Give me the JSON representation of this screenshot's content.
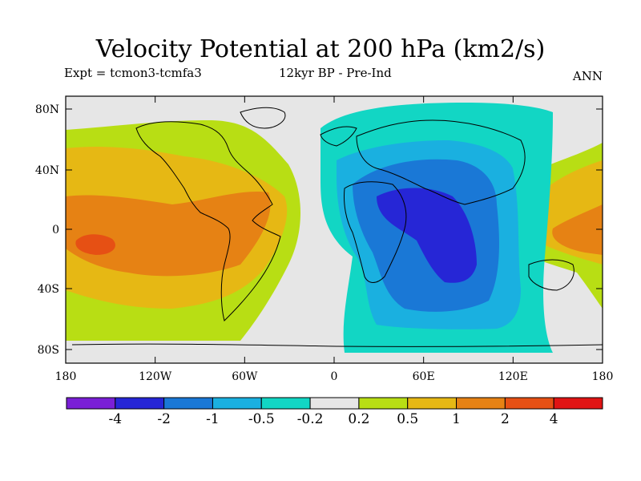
{
  "title": "Velocity Potential at 200 hPa (km2/s)",
  "subtitle_left": "Expt = tcmon3-tcmfa3",
  "subtitle_center": "12kyr BP - Pre-Ind",
  "subtitle_right": "ANN",
  "lat_labels": [
    "80N",
    "40N",
    "0",
    "40S",
    "80S"
  ],
  "lon_labels": [
    "180",
    "120W",
    "60W",
    "0",
    "60E",
    "120E",
    "180"
  ],
  "colorbar": {
    "colors": [
      "#7a1fd6",
      "#2626d6",
      "#1a78d6",
      "#1ab0e0",
      "#12d6c4",
      "#e6e6e6",
      "#b8de14",
      "#e6b814",
      "#e68214",
      "#e65014",
      "#e01414"
    ],
    "labels": [
      "-4",
      "-2",
      "-1",
      "-0.5",
      "-0.2",
      "0.2",
      "0.5",
      "1",
      "2",
      "4"
    ]
  },
  "colors": {
    "c_neg5": "#2626d6",
    "c_neg4": "#1a78d6",
    "c_neg3": "#1ab0e0",
    "c_neg2": "#12d6c4",
    "c_zero": "#e6e6e6",
    "c_pos1": "#b8de14",
    "c_pos2": "#e6b814",
    "c_pos3": "#e68214",
    "c_pos4": "#e65014"
  }
}
